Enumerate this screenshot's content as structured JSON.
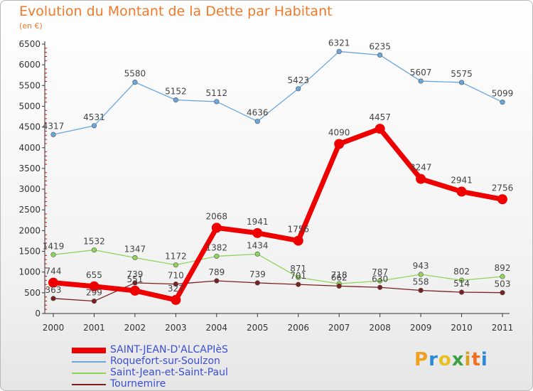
{
  "header": {
    "title": "Evolution du Montant de la Dette par Habitant",
    "unit": "(en €)"
  },
  "logo": {
    "text": "Proxiti"
  },
  "colors": {
    "title": "#f07a2a",
    "legend_text": "#3a4fd4",
    "axis": "#333333",
    "tick_marks": "#e00000"
  },
  "chart_data": {
    "type": "line",
    "title": "Evolution du Montant de la Dette par Habitant",
    "subtitle": "(en €)",
    "xlabel": "",
    "ylabel": "",
    "x": [
      "2000",
      "2001",
      "2002",
      "2003",
      "2004",
      "2005",
      "2006",
      "2007",
      "2008",
      "2009",
      "2010",
      "2011"
    ],
    "ylim": [
      0,
      6500
    ],
    "yticks": [
      0,
      500,
      1000,
      1500,
      2000,
      2500,
      3000,
      3500,
      4000,
      4500,
      5000,
      5500,
      6000,
      6500
    ],
    "grid": false,
    "legend_position": "bottom-left",
    "series": [
      {
        "name": "SAINT-JEAN-D'ALCAPIèS",
        "color": "#ee0000",
        "emphasis": true,
        "values": [
          744,
          655,
          551,
          327,
          2068,
          1941,
          1756,
          4090,
          4457,
          3247,
          2941,
          2756
        ]
      },
      {
        "name": "Roquefort-sur-Soulzon",
        "color": "#6aa6dc",
        "emphasis": false,
        "values": [
          4317,
          4531,
          5580,
          5152,
          5112,
          4636,
          5423,
          6321,
          6235,
          5607,
          5575,
          5099
        ]
      },
      {
        "name": "Saint-Jean-et-Saint-Paul",
        "color": "#8fd45a",
        "emphasis": false,
        "values": [
          1419,
          1532,
          1347,
          1172,
          1382,
          1434,
          871,
          718,
          787,
          943,
          802,
          892
        ]
      },
      {
        "name": "Tournemire",
        "color": "#7a2020",
        "emphasis": false,
        "values": [
          363,
          299,
          739,
          710,
          789,
          739,
          701,
          662,
          630,
          558,
          514,
          503
        ]
      }
    ]
  }
}
